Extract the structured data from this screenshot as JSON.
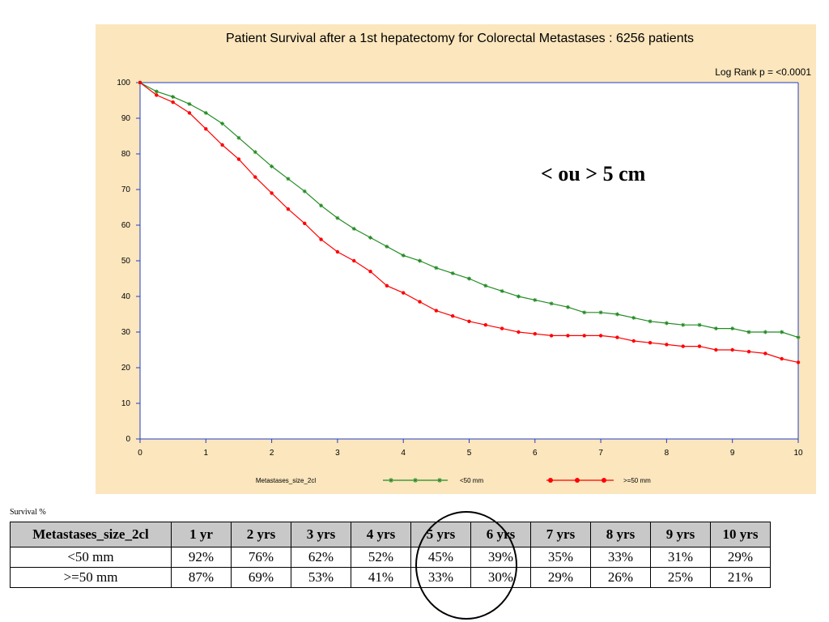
{
  "chart_data": {
    "type": "line",
    "title": "Patient Survival after a 1st hepatectomy for Colorectal Metastases : 6256 patients",
    "annotation": "Log Rank p = <0.0001",
    "overlay_text": "< ou > 5 cm",
    "xlabel": "",
    "ylabel": "",
    "xlim": [
      0,
      10
    ],
    "ylim": [
      0,
      100
    ],
    "x_ticks": [
      "0",
      "1",
      "2",
      "3",
      "4",
      "5",
      "6",
      "7",
      "8",
      "9",
      "10"
    ],
    "y_ticks": [
      "0",
      "10",
      "20",
      "30",
      "40",
      "50",
      "60",
      "70",
      "80",
      "90",
      "100"
    ],
    "legend_title": "Metastases_size_2cl",
    "legend_placement": "bottom",
    "series": [
      {
        "name": "<50 mm",
        "color": "#228b22",
        "marker": "star",
        "x": [
          0,
          0.25,
          0.5,
          0.75,
          1,
          1.25,
          1.5,
          1.75,
          2,
          2.25,
          2.5,
          2.75,
          3,
          3.25,
          3.5,
          3.75,
          4,
          4.25,
          4.5,
          4.75,
          5,
          5.25,
          5.5,
          5.75,
          6,
          6.25,
          6.5,
          6.75,
          7,
          7.25,
          7.5,
          7.75,
          8,
          8.25,
          8.5,
          8.75,
          9,
          9.25,
          9.5,
          9.75,
          10
        ],
        "y": [
          100,
          97.5,
          96,
          94,
          91.5,
          88.5,
          84.5,
          80.5,
          76.5,
          73,
          69.5,
          65.5,
          62,
          59,
          56.5,
          54,
          51.5,
          50,
          48,
          46.5,
          45,
          43,
          41.5,
          40,
          39,
          38,
          37,
          35.5,
          35.5,
          35,
          34,
          33,
          32.5,
          32,
          32,
          31,
          31,
          30,
          30,
          30,
          28.5
        ]
      },
      {
        "name": ">=50 mm",
        "color": "#ff0000",
        "marker": "circle",
        "x": [
          0,
          0.25,
          0.5,
          0.75,
          1,
          1.25,
          1.5,
          1.75,
          2,
          2.25,
          2.5,
          2.75,
          3,
          3.25,
          3.5,
          3.75,
          4,
          4.25,
          4.5,
          4.75,
          5,
          5.25,
          5.5,
          5.75,
          6,
          6.25,
          6.5,
          6.75,
          7,
          7.25,
          7.5,
          7.75,
          8,
          8.25,
          8.5,
          8.75,
          9,
          9.25,
          9.5,
          9.75,
          10
        ],
        "y": [
          100,
          96.5,
          94.5,
          91.5,
          87,
          82.5,
          78.5,
          73.5,
          69,
          64.5,
          60.5,
          56,
          52.5,
          50,
          47,
          43,
          41,
          38.5,
          36,
          34.5,
          33,
          32,
          31,
          30,
          29.5,
          29,
          29,
          29,
          29,
          28.5,
          27.5,
          27,
          26.5,
          26,
          26,
          25,
          25,
          24.5,
          24,
          22.5,
          21.5
        ]
      }
    ],
    "colors": {
      "background": "#fbe6bd",
      "plot_background": "#ffffff",
      "axis": "#1f3ec8"
    }
  },
  "table": {
    "caption": "Survival %",
    "headers": [
      "Metastases_size_2cl",
      "1 yr",
      "2 yrs",
      "3 yrs",
      "4 yrs",
      "5 yrs",
      "6 yrs",
      "7 yrs",
      "8 yrs",
      "9 yrs",
      "10 yrs"
    ],
    "rows": [
      [
        "<50 mm",
        "92%",
        "76%",
        "62%",
        "52%",
        "45%",
        "39%",
        "35%",
        "33%",
        "31%",
        "29%"
      ],
      [
        ">=50 mm",
        "87%",
        "69%",
        "53%",
        "41%",
        "33%",
        "30%",
        "29%",
        "26%",
        "25%",
        "21%"
      ]
    ]
  }
}
